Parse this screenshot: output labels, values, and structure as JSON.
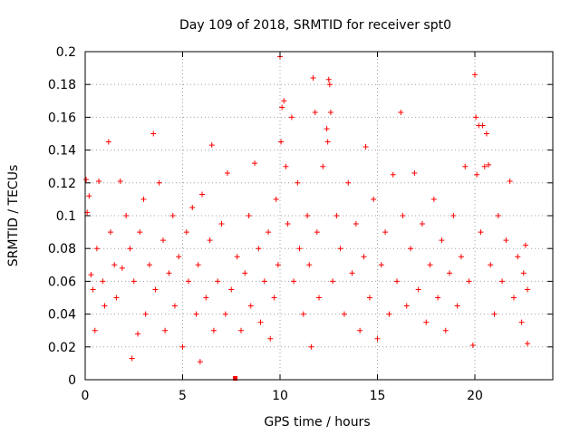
{
  "chart_data": {
    "type": "scatter",
    "title": "Day 109 of 2018, SRMTID for receiver spt0",
    "xlabel": "GPS time / hours",
    "ylabel": "SRMTID / TECUs",
    "xlim": [
      0,
      24
    ],
    "ylim": [
      0,
      0.2
    ],
    "grid": true,
    "legend": "none",
    "color": "#ff0000",
    "x_ticks": [
      {
        "value": 0,
        "label": "0"
      },
      {
        "value": 5,
        "label": "5"
      },
      {
        "value": 10,
        "label": "10"
      },
      {
        "value": 15,
        "label": "15"
      },
      {
        "value": 20,
        "label": "20"
      }
    ],
    "y_ticks": [
      {
        "value": 0,
        "label": "0"
      },
      {
        "value": 0.02,
        "label": "0.02"
      },
      {
        "value": 0.04,
        "label": "0.04"
      },
      {
        "value": 0.06,
        "label": "0.06"
      },
      {
        "value": 0.08,
        "label": "0.08"
      },
      {
        "value": 0.1,
        "label": "0.1"
      },
      {
        "value": 0.12,
        "label": "0.12"
      },
      {
        "value": 0.14,
        "label": "0.14"
      },
      {
        "value": 0.16,
        "label": "0.16"
      },
      {
        "value": 0.18,
        "label": "0.18"
      },
      {
        "value": 0.2,
        "label": "0.2"
      }
    ],
    "series": [
      {
        "name": "SRMTID",
        "marker": "plus",
        "points_note": "dense cloud, mostly 0.02-0.10 TECU over 0-22.7 h",
        "points": [
          [
            0.05,
            0.122
          ],
          [
            0.1,
            0.102
          ],
          [
            0.2,
            0.112
          ],
          [
            0.3,
            0.064
          ],
          [
            0.4,
            0.055
          ],
          [
            0.5,
            0.03
          ],
          [
            0.6,
            0.08
          ],
          [
            0.7,
            0.121
          ],
          [
            0.9,
            0.06
          ],
          [
            1.0,
            0.045
          ],
          [
            1.2,
            0.145
          ],
          [
            1.3,
            0.09
          ],
          [
            1.5,
            0.07
          ],
          [
            1.6,
            0.05
          ],
          [
            1.8,
            0.121
          ],
          [
            1.9,
            0.068
          ],
          [
            2.1,
            0.1
          ],
          [
            2.3,
            0.08
          ],
          [
            2.4,
            0.013
          ],
          [
            2.5,
            0.06
          ],
          [
            2.7,
            0.028
          ],
          [
            2.8,
            0.09
          ],
          [
            3.0,
            0.11
          ],
          [
            3.1,
            0.04
          ],
          [
            3.3,
            0.07
          ],
          [
            3.5,
            0.15
          ],
          [
            3.6,
            0.055
          ],
          [
            3.8,
            0.12
          ],
          [
            4.0,
            0.085
          ],
          [
            4.1,
            0.03
          ],
          [
            4.3,
            0.065
          ],
          [
            4.5,
            0.1
          ],
          [
            4.6,
            0.045
          ],
          [
            4.8,
            0.075
          ],
          [
            5.0,
            0.02
          ],
          [
            5.2,
            0.09
          ],
          [
            5.3,
            0.06
          ],
          [
            5.5,
            0.105
          ],
          [
            5.7,
            0.04
          ],
          [
            5.8,
            0.07
          ],
          [
            5.9,
            0.011
          ],
          [
            6.0,
            0.113
          ],
          [
            6.2,
            0.05
          ],
          [
            6.4,
            0.085
          ],
          [
            6.5,
            0.143
          ],
          [
            6.6,
            0.03
          ],
          [
            6.8,
            0.06
          ],
          [
            7.0,
            0.095
          ],
          [
            7.2,
            0.04
          ],
          [
            7.3,
            0.126
          ],
          [
            7.5,
            0.055
          ],
          [
            7.7,
            0.0
          ],
          [
            7.8,
            0.075
          ],
          [
            8.0,
            0.03
          ],
          [
            8.2,
            0.065
          ],
          [
            8.4,
            0.1
          ],
          [
            8.5,
            0.045
          ],
          [
            8.7,
            0.132
          ],
          [
            8.9,
            0.08
          ],
          [
            9.0,
            0.035
          ],
          [
            9.2,
            0.06
          ],
          [
            9.4,
            0.09
          ],
          [
            9.5,
            0.025
          ],
          [
            9.7,
            0.05
          ],
          [
            9.8,
            0.11
          ],
          [
            9.9,
            0.07
          ],
          [
            10.0,
            0.197
          ],
          [
            10.05,
            0.145
          ],
          [
            10.1,
            0.166
          ],
          [
            10.2,
            0.17
          ],
          [
            10.3,
            0.13
          ],
          [
            10.4,
            0.095
          ],
          [
            10.6,
            0.16
          ],
          [
            10.7,
            0.06
          ],
          [
            10.9,
            0.12
          ],
          [
            11.0,
            0.08
          ],
          [
            11.2,
            0.04
          ],
          [
            11.4,
            0.1
          ],
          [
            11.5,
            0.07
          ],
          [
            11.6,
            0.02
          ],
          [
            11.7,
            0.184
          ],
          [
            11.8,
            0.163
          ],
          [
            11.9,
            0.09
          ],
          [
            12.0,
            0.05
          ],
          [
            12.2,
            0.13
          ],
          [
            12.4,
            0.153
          ],
          [
            12.45,
            0.145
          ],
          [
            12.5,
            0.183
          ],
          [
            12.55,
            0.18
          ],
          [
            12.6,
            0.163
          ],
          [
            12.7,
            0.06
          ],
          [
            12.9,
            0.1
          ],
          [
            13.1,
            0.08
          ],
          [
            13.3,
            0.04
          ],
          [
            13.5,
            0.12
          ],
          [
            13.7,
            0.065
          ],
          [
            13.9,
            0.095
          ],
          [
            14.1,
            0.03
          ],
          [
            14.3,
            0.075
          ],
          [
            14.4,
            0.142
          ],
          [
            14.6,
            0.05
          ],
          [
            14.8,
            0.11
          ],
          [
            15.0,
            0.025
          ],
          [
            15.2,
            0.07
          ],
          [
            15.4,
            0.09
          ],
          [
            15.6,
            0.04
          ],
          [
            15.8,
            0.125
          ],
          [
            16.0,
            0.06
          ],
          [
            16.2,
            0.163
          ],
          [
            16.3,
            0.1
          ],
          [
            16.5,
            0.045
          ],
          [
            16.7,
            0.08
          ],
          [
            16.9,
            0.126
          ],
          [
            17.1,
            0.055
          ],
          [
            17.3,
            0.095
          ],
          [
            17.5,
            0.035
          ],
          [
            17.7,
            0.07
          ],
          [
            17.9,
            0.11
          ],
          [
            18.1,
            0.05
          ],
          [
            18.3,
            0.085
          ],
          [
            18.5,
            0.03
          ],
          [
            18.7,
            0.065
          ],
          [
            18.9,
            0.1
          ],
          [
            19.1,
            0.045
          ],
          [
            19.3,
            0.075
          ],
          [
            19.5,
            0.13
          ],
          [
            19.7,
            0.06
          ],
          [
            19.9,
            0.021
          ],
          [
            20.0,
            0.186
          ],
          [
            20.05,
            0.16
          ],
          [
            20.1,
            0.125
          ],
          [
            20.2,
            0.155
          ],
          [
            20.3,
            0.09
          ],
          [
            20.4,
            0.155
          ],
          [
            20.5,
            0.13
          ],
          [
            20.6,
            0.15
          ],
          [
            20.7,
            0.131
          ],
          [
            20.8,
            0.07
          ],
          [
            21.0,
            0.04
          ],
          [
            21.2,
            0.1
          ],
          [
            21.4,
            0.06
          ],
          [
            21.6,
            0.085
          ],
          [
            21.8,
            0.121
          ],
          [
            22.0,
            0.05
          ],
          [
            22.2,
            0.075
          ],
          [
            22.4,
            0.035
          ],
          [
            22.5,
            0.065
          ],
          [
            22.6,
            0.082
          ],
          [
            22.7,
            0.022
          ],
          [
            22.7,
            0.055
          ]
        ]
      }
    ]
  }
}
